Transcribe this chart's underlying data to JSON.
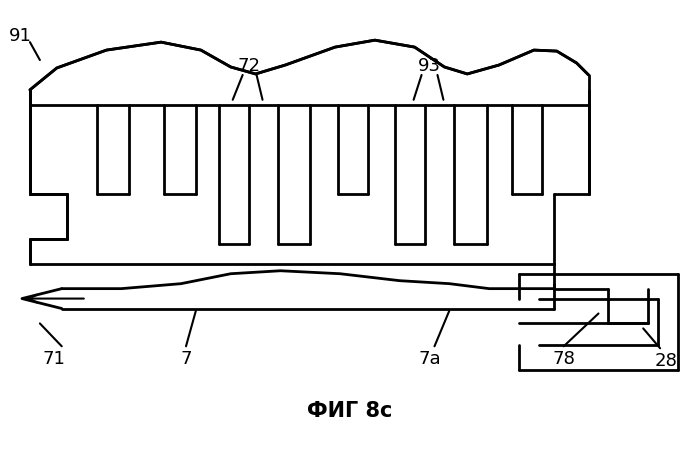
{
  "title": "ФИГ 8c",
  "background_color": "#ffffff",
  "line_color": "#000000",
  "line_width": 2.0,
  "figsize": [
    7.0,
    4.6
  ],
  "dpi": 100
}
